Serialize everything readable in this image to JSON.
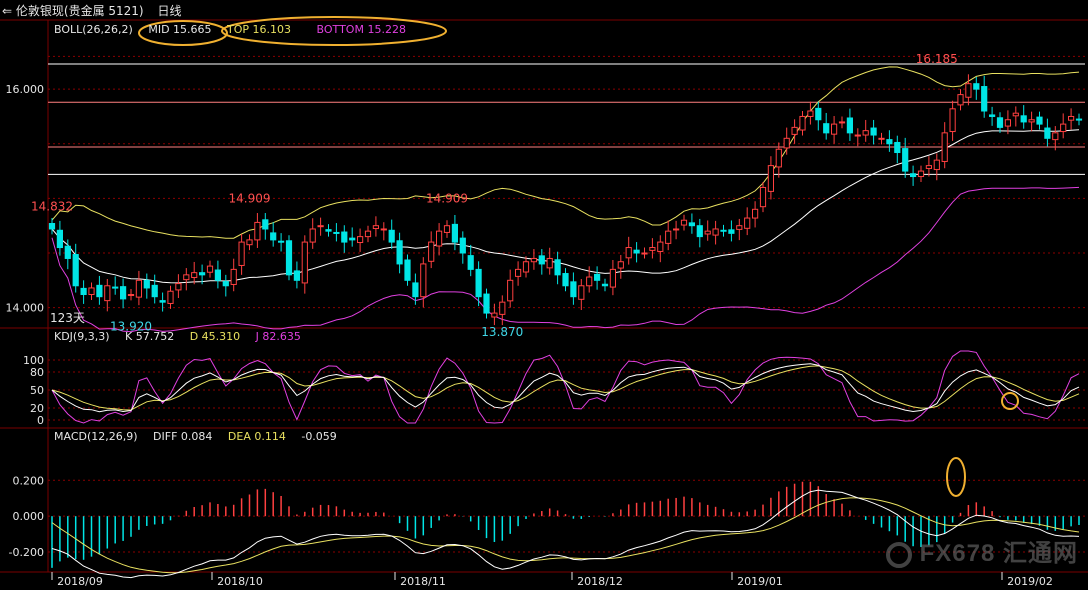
{
  "title": {
    "instrument": "伦敦银现(贵金属 5121)",
    "timeframe": "日线"
  },
  "boll": {
    "label": "BOLL(26,26,2)",
    "mid": "MID 15.665",
    "top": "TOP 16.103",
    "bottom": "BOTTOM 15.228"
  },
  "kdj": {
    "label": "KDJ(9,3,3)",
    "k": "K 57.752",
    "d": "D 45.310",
    "j": "J 82.635"
  },
  "macd": {
    "label": "MACD(12,26,9)",
    "diff": "DIFF 0.084",
    "dea": "DEA 0.114",
    "macd": "-0.059"
  },
  "watermark": "FX678 汇通网",
  "colors": {
    "up": "#ff4040",
    "down": "#00e5e5",
    "boll_mid": "#ffffff",
    "boll_band": "#e8e060",
    "boll_bottom": "#e040e0",
    "k": "#ffffff",
    "d": "#e8e060",
    "j": "#e040e0",
    "grid": "#8b0000",
    "hline": "#ffffff",
    "hline_pink": "#ff8080",
    "annot": "#f0b030"
  },
  "chart_data": {
    "type": "candlestick",
    "price_axis": {
      "ticks": [
        14.0,
        16.0
      ],
      "tick_labels": [
        "14.000",
        "16.000"
      ],
      "ylim": [
        13.85,
        16.45
      ]
    },
    "x_labels": [
      "2018/09",
      "2018/10",
      "2018/11",
      "2018/12",
      "2019/01",
      "2019/02"
    ],
    "annotations": [
      {
        "text": "14.832",
        "bar": 0,
        "value": 14.832,
        "kind": "high"
      },
      {
        "text": "14.909",
        "bar": 25,
        "value": 14.909,
        "kind": "high"
      },
      {
        "text": "14.909",
        "bar": 50,
        "value": 14.909,
        "kind": "high"
      },
      {
        "text": "13.920",
        "bar": 10,
        "value": 13.92,
        "kind": "low"
      },
      {
        "text": "13.870",
        "bar": 57,
        "value": 13.87,
        "kind": "low"
      },
      {
        "text": "16.185",
        "bar": 112,
        "value": 16.185,
        "kind": "high"
      },
      {
        "text": "123天",
        "bar": 0,
        "value": 13.8,
        "kind": "count"
      }
    ],
    "horizontal_lines": [
      {
        "value": 16.23,
        "color": "hline"
      },
      {
        "value": 15.88,
        "color": "hline_pink"
      },
      {
        "value": 15.47,
        "color": "hline_pink"
      },
      {
        "value": 15.22,
        "color": "hline"
      }
    ],
    "closes": [
      14.72,
      14.55,
      14.45,
      14.2,
      14.12,
      14.18,
      14.1,
      14.2,
      14.18,
      14.08,
      14.12,
      14.25,
      14.18,
      14.1,
      14.05,
      14.15,
      14.22,
      14.3,
      14.32,
      14.3,
      14.38,
      14.25,
      14.2,
      14.35,
      14.6,
      14.62,
      14.78,
      14.72,
      14.62,
      14.6,
      14.3,
      14.25,
      14.6,
      14.72,
      14.75,
      14.7,
      14.68,
      14.6,
      14.62,
      14.65,
      14.7,
      14.75,
      14.72,
      14.6,
      14.4,
      14.25,
      14.1,
      14.4,
      14.6,
      14.7,
      14.75,
      14.6,
      14.5,
      14.35,
      14.1,
      13.95,
      13.95,
      14.05,
      14.25,
      14.35,
      14.42,
      14.45,
      14.4,
      14.45,
      14.3,
      14.2,
      14.1,
      14.2,
      14.28,
      14.25,
      14.2,
      14.35,
      14.42,
      14.55,
      14.5,
      14.5,
      14.55,
      14.6,
      14.7,
      14.72,
      14.8,
      14.75,
      14.65,
      14.7,
      14.72,
      14.7,
      14.68,
      14.75,
      14.82,
      14.9,
      15.1,
      15.3,
      15.45,
      15.55,
      15.65,
      15.75,
      15.8,
      15.72,
      15.6,
      15.68,
      15.7,
      15.6,
      15.58,
      15.62,
      15.58,
      15.55,
      15.5,
      15.42,
      15.25,
      15.2,
      15.25,
      15.3,
      15.35,
      15.6,
      15.82,
      15.95,
      16.05,
      16.0,
      15.8,
      15.75,
      15.65,
      15.72,
      15.78,
      15.7,
      15.72,
      15.68,
      15.55,
      15.6,
      15.68,
      15.75,
      15.72
    ],
    "kdj": {
      "ticks": [
        0,
        20,
        50,
        80,
        100
      ],
      "ylim": [
        -10,
        120
      ]
    },
    "macd": {
      "ticks": [
        -0.2,
        0.0,
        0.2
      ],
      "tick_labels": [
        "-0.200",
        "0.000",
        "0.200"
      ],
      "ylim": [
        -0.3,
        0.38
      ]
    }
  }
}
